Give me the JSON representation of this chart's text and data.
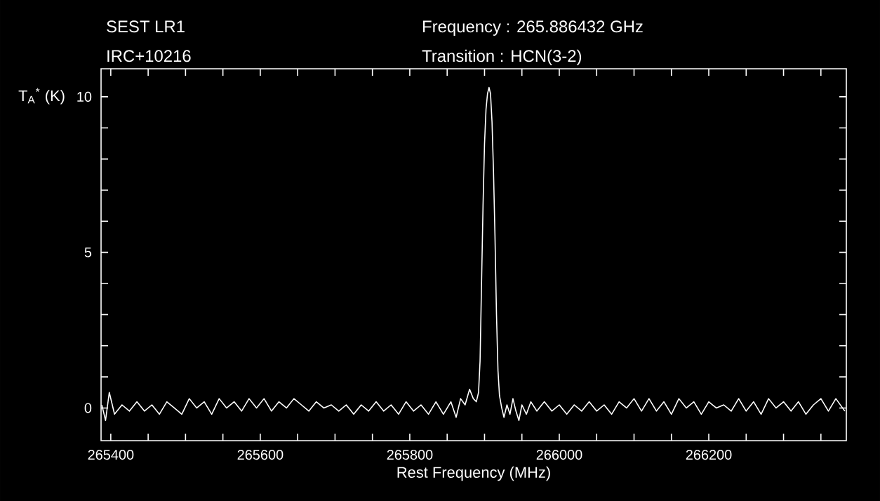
{
  "chart_data": {
    "type": "line",
    "title": "SEST LR1",
    "subtitle": "IRC+10216",
    "annotations": [
      "Frequency  : 265.886432 GHz",
      "Transition  : HCN(3-2)"
    ],
    "xlabel": "Rest Frequency (MHz)",
    "ylabel": "T$_{A}$$^{*}$ (K)",
    "xlim": [
      265387,
      266384
    ],
    "ylim": [
      -1.05,
      10.9
    ],
    "xticks": [
      265400,
      {
        "value": 265450,
        "label": null
      },
      {
        "value": 265500,
        "label": null
      },
      {
        "value": 265550,
        "label": null
      },
      265600,
      {
        "value": 265650,
        "label": null
      },
      {
        "value": 265700,
        "label": null
      },
      {
        "value": 265750,
        "label": null
      },
      265800,
      {
        "value": 265850,
        "label": null
      },
      {
        "value": 265900,
        "label": null
      },
      {
        "value": 265950,
        "label": null
      },
      266000,
      {
        "value": 266050,
        "label": null
      },
      {
        "value": 266100,
        "label": null
      },
      {
        "value": 266150,
        "label": null
      },
      266200,
      {
        "value": 266250,
        "label": null
      },
      {
        "value": 266300,
        "label": null
      },
      {
        "value": 266350,
        "label": null
      }
    ],
    "yticks": [
      0,
      {
        "value": 1,
        "label": null
      },
      {
        "value": 2,
        "label": null
      },
      {
        "value": 3,
        "label": null
      },
      {
        "value": 4,
        "label": null
      },
      5,
      {
        "value": 6,
        "label": null
      },
      {
        "value": 7,
        "label": null
      },
      {
        "value": 8,
        "label": null
      },
      {
        "value": 9,
        "label": null
      },
      10
    ],
    "series": [
      {
        "color": "#ffffff",
        "x": [
          265388,
          265393,
          265398,
          265405,
          265415,
          265425,
          265435,
          265445,
          265455,
          265465,
          265475,
          265485,
          265495,
          265505,
          265515,
          265525,
          265535,
          265545,
          265555,
          265565,
          265575,
          265585,
          265595,
          265605,
          265615,
          265625,
          265635,
          265645,
          265655,
          265665,
          265675,
          265685,
          265695,
          265705,
          265715,
          265725,
          265735,
          265745,
          265755,
          265765,
          265775,
          265785,
          265795,
          265805,
          265815,
          265825,
          265835,
          265845,
          265855,
          265862,
          265868,
          265874,
          265880,
          265885,
          265889,
          265892,
          265894,
          265896,
          265898,
          265900,
          265902,
          265904,
          265906,
          265908,
          265910,
          265912,
          265914,
          265916,
          265918,
          265920,
          265923,
          265926,
          265930,
          265934,
          265938,
          265942,
          265946,
          265950,
          265956,
          265962,
          265970,
          265980,
          265990,
          266000,
          266010,
          266020,
          266030,
          266040,
          266050,
          266060,
          266070,
          266080,
          266090,
          266100,
          266110,
          266120,
          266130,
          266140,
          266150,
          266160,
          266170,
          266180,
          266190,
          266200,
          266210,
          266220,
          266230,
          266240,
          266250,
          266260,
          266270,
          266280,
          266290,
          266300,
          266310,
          266320,
          266330,
          266340,
          266350,
          266360,
          266370,
          266382
        ],
        "values": [
          0.1,
          -0.4,
          0.5,
          -0.2,
          0.1,
          -0.1,
          0.2,
          -0.1,
          0.1,
          -0.2,
          0.2,
          0.0,
          -0.2,
          0.3,
          0.0,
          0.2,
          -0.2,
          0.3,
          0.0,
          0.2,
          -0.1,
          0.3,
          0.0,
          0.3,
          -0.1,
          0.2,
          0.0,
          0.3,
          0.1,
          -0.1,
          0.2,
          0.0,
          0.1,
          -0.1,
          0.1,
          -0.2,
          0.1,
          -0.1,
          0.2,
          -0.1,
          0.1,
          -0.2,
          0.2,
          -0.1,
          0.1,
          -0.2,
          0.2,
          -0.2,
          0.2,
          -0.3,
          0.3,
          0.1,
          0.6,
          0.3,
          0.2,
          0.5,
          1.5,
          4.0,
          6.5,
          8.5,
          9.6,
          10.1,
          10.3,
          10.1,
          9.2,
          7.6,
          5.5,
          3.0,
          1.2,
          0.4,
          0.0,
          -0.3,
          0.1,
          -0.2,
          0.3,
          -0.1,
          -0.4,
          0.1,
          -0.2,
          0.2,
          -0.1,
          0.2,
          -0.1,
          0.1,
          -0.2,
          0.1,
          -0.1,
          0.2,
          -0.1,
          0.1,
          -0.2,
          0.2,
          0.0,
          0.3,
          -0.1,
          0.3,
          -0.1,
          0.2,
          -0.2,
          0.3,
          0.0,
          0.2,
          -0.2,
          0.2,
          0.0,
          0.1,
          -0.1,
          0.3,
          -0.1,
          0.2,
          -0.2,
          0.3,
          0.0,
          0.2,
          -0.1,
          0.2,
          -0.2,
          0.1,
          0.3,
          -0.1,
          0.3,
          -0.1
        ]
      }
    ]
  }
}
